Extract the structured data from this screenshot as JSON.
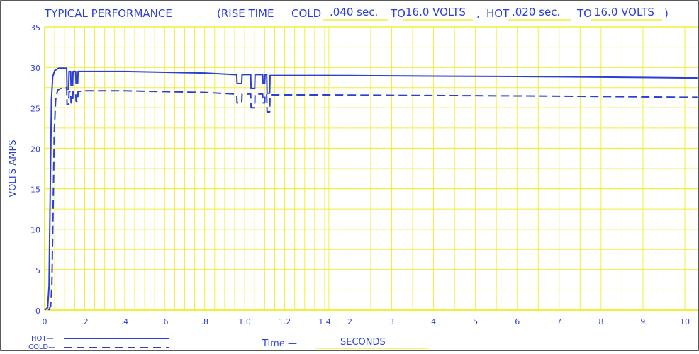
{
  "header": {
    "title": "TYPICAL PERFORMANCE",
    "rise_prefix": "(RISE TIME",
    "cold_label": "COLD",
    "cold_time": ".040 sec.",
    "to_1": "TO",
    "cold_volts": "16.0 VOLTS",
    "sep": ",",
    "hot_label": "HOT",
    "hot_time": ".020 sec.",
    "to_2": "TO",
    "hot_volts": "16.0 VOLTS",
    "close": ")"
  },
  "legend": {
    "hot": "HOT—",
    "cold": "COLD—"
  },
  "xaxis_title": {
    "prefix": "Time  —",
    "unit": "SECONDS"
  },
  "colors": {
    "line": "#2b3fd6",
    "grid": "#f2ee3c",
    "frame": "#222222"
  },
  "chart_data": {
    "type": "line",
    "title": "TYPICAL PERFORMANCE",
    "xlabel": "Time — SECONDS",
    "ylabel": "VOLTS-AMPS",
    "grid": true,
    "ylim": [
      0,
      35
    ],
    "yticks": [
      0,
      5,
      10,
      15,
      20,
      25,
      30,
      35
    ],
    "ytick_labels": [
      "0",
      "5",
      "10",
      "15",
      "20",
      "25",
      "30",
      "35"
    ],
    "xticks": [
      0,
      0.2,
      0.4,
      0.6,
      0.8,
      1.0,
      1.2,
      1.4,
      2,
      3,
      4,
      5,
      6,
      7,
      8,
      9,
      10
    ],
    "xtick_labels": [
      "0",
      ".2",
      ".4",
      ".6",
      ".8",
      "1.0",
      "1.2",
      "1.4",
      "2",
      "3",
      "4",
      "5",
      "6",
      "7",
      "8",
      "9",
      "10"
    ],
    "legend_position": "bottom-left",
    "series": [
      {
        "name": "HOT",
        "style": "solid",
        "points": [
          [
            0,
            0
          ],
          [
            0.015,
            0.3
          ],
          [
            0.022,
            3
          ],
          [
            0.028,
            15
          ],
          [
            0.034,
            26
          ],
          [
            0.04,
            28.8
          ],
          [
            0.05,
            29.6
          ],
          [
            0.07,
            29.9
          ],
          [
            0.11,
            29.9
          ],
          [
            0.112,
            27.3
          ],
          [
            0.12,
            27.3
          ],
          [
            0.122,
            29.5
          ],
          [
            0.13,
            29.5
          ],
          [
            0.132,
            27.8
          ],
          [
            0.14,
            27.8
          ],
          [
            0.142,
            29.5
          ],
          [
            0.155,
            29.5
          ],
          [
            0.157,
            28
          ],
          [
            0.165,
            28
          ],
          [
            0.167,
            29.5
          ],
          [
            0.2,
            29.5
          ],
          [
            0.4,
            29.5
          ],
          [
            0.6,
            29.4
          ],
          [
            0.8,
            29.3
          ],
          [
            0.95,
            29.1
          ],
          [
            0.96,
            29.1
          ],
          [
            0.962,
            28
          ],
          [
            0.985,
            28
          ],
          [
            0.987,
            29.1
          ],
          [
            1.03,
            29.1
          ],
          [
            1.032,
            27.4
          ],
          [
            1.05,
            27.4
          ],
          [
            1.052,
            29.1
          ],
          [
            1.09,
            29.1
          ],
          [
            1.092,
            28
          ],
          [
            1.1,
            28
          ],
          [
            1.102,
            29.1
          ],
          [
            1.11,
            29.1
          ],
          [
            1.112,
            26.8
          ],
          [
            1.125,
            26.8
          ],
          [
            1.127,
            29
          ],
          [
            1.4,
            29
          ],
          [
            2,
            28.98
          ],
          [
            3,
            28.95
          ],
          [
            4,
            28.92
          ],
          [
            5,
            28.9
          ],
          [
            6,
            28.87
          ],
          [
            7,
            28.84
          ],
          [
            8,
            28.8
          ],
          [
            9,
            28.75
          ],
          [
            10,
            28.7
          ],
          [
            10.3,
            28.7
          ]
        ]
      },
      {
        "name": "COLD",
        "style": "dashed",
        "points": [
          [
            0.02,
            0
          ],
          [
            0.03,
            0.5
          ],
          [
            0.036,
            3
          ],
          [
            0.042,
            12
          ],
          [
            0.048,
            22
          ],
          [
            0.055,
            26
          ],
          [
            0.065,
            27.2
          ],
          [
            0.09,
            27.5
          ],
          [
            0.11,
            27.5
          ],
          [
            0.112,
            25.4
          ],
          [
            0.12,
            25.4
          ],
          [
            0.122,
            27
          ],
          [
            0.13,
            27
          ],
          [
            0.132,
            25.6
          ],
          [
            0.14,
            25.6
          ],
          [
            0.142,
            27
          ],
          [
            0.155,
            27
          ],
          [
            0.157,
            25.8
          ],
          [
            0.165,
            25.8
          ],
          [
            0.167,
            27
          ],
          [
            0.2,
            27.1
          ],
          [
            0.4,
            27.1
          ],
          [
            0.6,
            27
          ],
          [
            0.8,
            26.9
          ],
          [
            0.95,
            26.7
          ],
          [
            0.96,
            26.7
          ],
          [
            0.962,
            25.6
          ],
          [
            0.985,
            25.6
          ],
          [
            0.987,
            26.7
          ],
          [
            1.03,
            26.7
          ],
          [
            1.032,
            25
          ],
          [
            1.05,
            25
          ],
          [
            1.052,
            26.7
          ],
          [
            1.09,
            26.7
          ],
          [
            1.092,
            25.6
          ],
          [
            1.1,
            25.6
          ],
          [
            1.102,
            26.7
          ],
          [
            1.11,
            26.7
          ],
          [
            1.112,
            24.5
          ],
          [
            1.125,
            24.5
          ],
          [
            1.127,
            26.6
          ],
          [
            1.4,
            26.6
          ],
          [
            2,
            26.58
          ],
          [
            3,
            26.55
          ],
          [
            4,
            26.52
          ],
          [
            5,
            26.5
          ],
          [
            6,
            26.47
          ],
          [
            7,
            26.44
          ],
          [
            8,
            26.4
          ],
          [
            9,
            26.35
          ],
          [
            10,
            26.3
          ],
          [
            10.3,
            26.3
          ]
        ]
      }
    ]
  }
}
